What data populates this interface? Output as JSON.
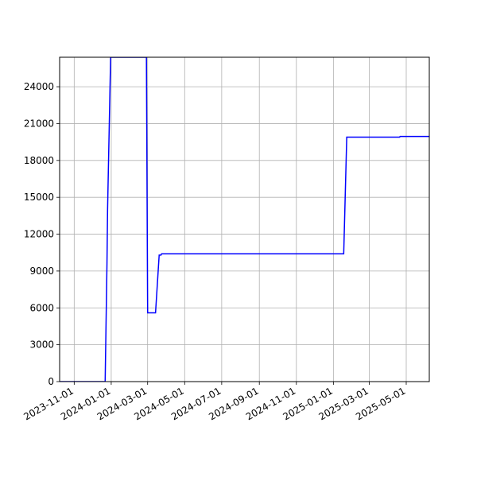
{
  "chart_data": {
    "type": "line",
    "title": "",
    "xlabel": "",
    "ylabel": "",
    "grid": true,
    "line_color": "#0000ff",
    "x_range": [
      "2023-10-08",
      "2025-06-08"
    ],
    "ylim": [
      0,
      26400
    ],
    "x_ticks": [
      "2023-11-01",
      "2024-01-01",
      "2024-03-01",
      "2024-05-01",
      "2024-07-01",
      "2024-09-01",
      "2024-11-01",
      "2025-01-01",
      "2025-03-01",
      "2025-05-01"
    ],
    "y_ticks": [
      0,
      3000,
      6000,
      9000,
      12000,
      15000,
      18000,
      21000,
      24000
    ],
    "y_tick_labels": [
      "0",
      "3000",
      "6000",
      "9000",
      "12000",
      "15000",
      "18000",
      "21000",
      "24000"
    ],
    "series": [
      {
        "x": [
          "2023-10-08",
          "2023-12-22",
          "2023-12-25",
          "2023-12-26",
          "2023-12-31",
          "2024-02-28",
          "2024-03-01",
          "2024-03-02",
          "2024-03-08",
          "2024-03-14",
          "2024-03-20",
          "2024-03-23",
          "2024-03-24",
          "2025-01-18",
          "2025-01-23",
          "2025-04-20",
          "2025-04-21",
          "2025-06-08"
        ],
        "y": [
          0,
          0,
          9600,
          14000,
          26400,
          26400,
          5600,
          5600,
          5600,
          5600,
          10300,
          10300,
          10400,
          10400,
          19900,
          19900,
          19950,
          19950
        ]
      }
    ]
  }
}
